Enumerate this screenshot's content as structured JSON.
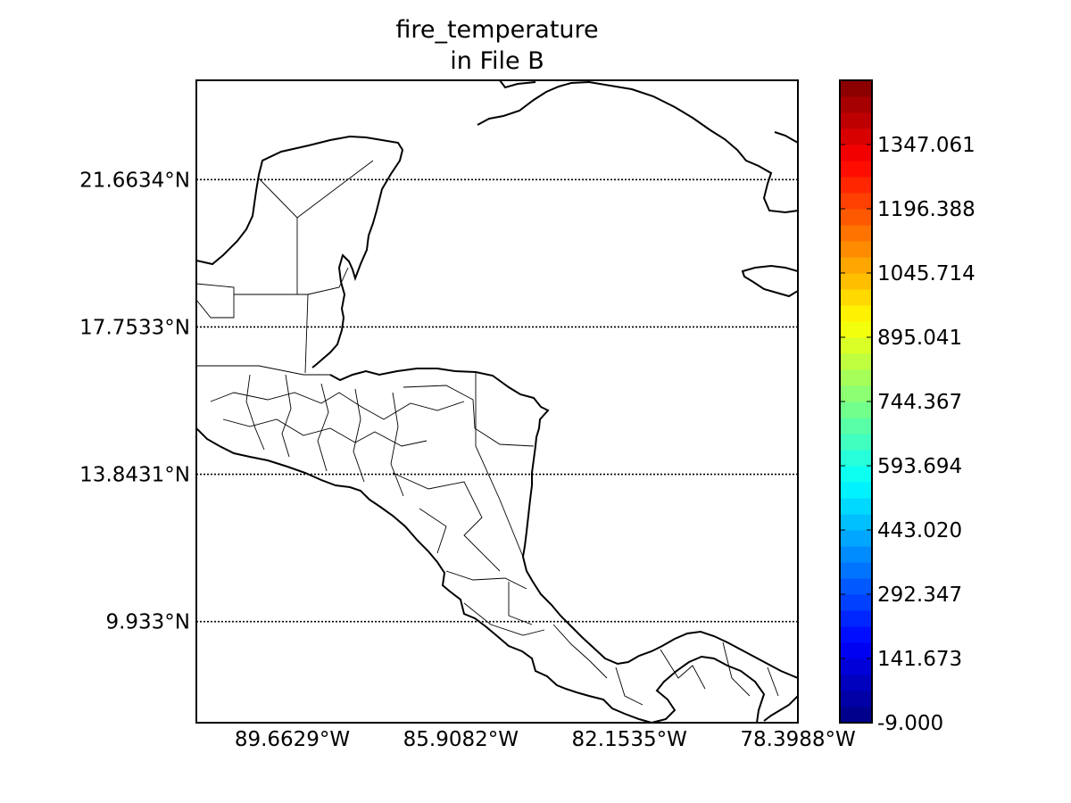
{
  "title": {
    "line1": "fire_temperature",
    "line2": "in File B"
  },
  "map": {
    "region": "Central America",
    "graticule_style": "dotted",
    "lat_labels": [
      "21.6634°N",
      "17.7533°N",
      "13.8431°N",
      "9.933°N"
    ],
    "lon_labels": [
      "89.6629°W",
      "85.9082°W",
      "82.1535°W",
      "78.3988°W"
    ],
    "lat_values": [
      21.6634,
      17.7533,
      13.8431,
      9.933
    ],
    "lon_values": [
      -89.6629,
      -85.9082,
      -82.1535,
      -78.3988
    ],
    "lat_range": [
      7.25,
      24.3
    ],
    "lon_range": [
      -91.8,
      -78.4
    ],
    "land_color": "#ffffff",
    "boundary_color": "#000000"
  },
  "colorbar": {
    "colormap": "jet",
    "range": [
      -9.0,
      1497.734
    ],
    "labels": [
      "-9.000",
      "141.673",
      "292.347",
      "443.020",
      "593.694",
      "744.367",
      "895.041",
      "1045.714",
      "1196.388",
      "1347.061"
    ],
    "label_values": [
      -9.0,
      141.673,
      292.347,
      443.02,
      593.694,
      744.367,
      895.041,
      1045.714,
      1196.388,
      1347.061
    ]
  }
}
